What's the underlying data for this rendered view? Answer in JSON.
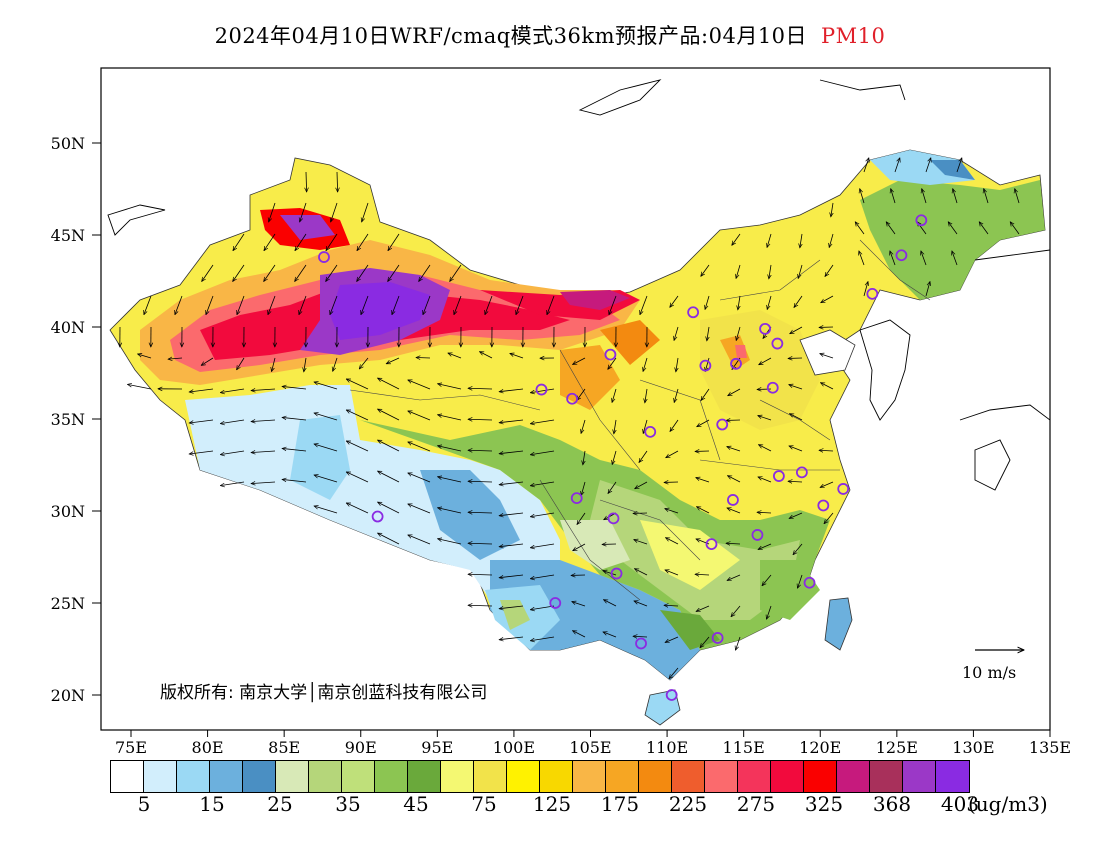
{
  "title": {
    "main": "2024年04月10日WRF/cmaq模式36km预报产品:04月10日",
    "product": "PM10"
  },
  "map": {
    "lat_labels": [
      "50N",
      "45N",
      "40N",
      "35N",
      "30N",
      "25N",
      "20N"
    ],
    "lon_labels": [
      "75E",
      "80E",
      "85E",
      "90E",
      "95E",
      "100E",
      "105E",
      "110E",
      "115E",
      "120E",
      "125E",
      "130E",
      "135E"
    ],
    "copyright": "版权所有: 南京大学│南京创蓝科技有限公司",
    "wind_scale_label": "10 m/s"
  },
  "legend": {
    "colors": [
      "#ffffff",
      "#d2eefc",
      "#9bd9f4",
      "#6cb0dd",
      "#4a8fc3",
      "#d8e9b7",
      "#b5d67a",
      "#bfe07a",
      "#8cc552",
      "#6aa93b",
      "#f4f872",
      "#f2e34a",
      "#fff200",
      "#f8d800",
      "#f9b646",
      "#f6a623",
      "#f38a10",
      "#ef5d2d",
      "#fb6a6d",
      "#f4345b",
      "#f20a3d",
      "#fa0000",
      "#c61a7d",
      "#a8305b",
      "#9b38c7",
      "#8a2be2"
    ],
    "labels": [
      "5",
      "15",
      "25",
      "35",
      "45",
      "75",
      "125",
      "175",
      "225",
      "275",
      "325",
      "368",
      "403"
    ],
    "unit": "(ug/m3)"
  },
  "stations": [
    {
      "lon": 87.6,
      "lat": 43.8
    },
    {
      "lon": 91.1,
      "lat": 29.7
    },
    {
      "lon": 101.8,
      "lat": 36.6
    },
    {
      "lon": 103.8,
      "lat": 36.1
    },
    {
      "lon": 106.3,
      "lat": 38.5
    },
    {
      "lon": 111.7,
      "lat": 40.8
    },
    {
      "lon": 112.5,
      "lat": 37.9
    },
    {
      "lon": 114.5,
      "lat": 38.0
    },
    {
      "lon": 116.4,
      "lat": 39.9
    },
    {
      "lon": 117.2,
      "lat": 39.1
    },
    {
      "lon": 116.9,
      "lat": 36.7
    },
    {
      "lon": 113.6,
      "lat": 34.7
    },
    {
      "lon": 108.9,
      "lat": 34.3
    },
    {
      "lon": 104.1,
      "lat": 30.7
    },
    {
      "lon": 106.5,
      "lat": 29.6
    },
    {
      "lon": 106.7,
      "lat": 26.6
    },
    {
      "lon": 102.7,
      "lat": 25.0
    },
    {
      "lon": 108.3,
      "lat": 22.8
    },
    {
      "lon": 113.3,
      "lat": 23.1
    },
    {
      "lon": 110.3,
      "lat": 20.0
    },
    {
      "lon": 119.3,
      "lat": 26.1
    },
    {
      "lon": 115.9,
      "lat": 28.7
    },
    {
      "lon": 112.9,
      "lat": 28.2
    },
    {
      "lon": 114.3,
      "lat": 30.6
    },
    {
      "lon": 117.3,
      "lat": 31.9
    },
    {
      "lon": 118.8,
      "lat": 32.1
    },
    {
      "lon": 120.2,
      "lat": 30.3
    },
    {
      "lon": 121.5,
      "lat": 31.2
    },
    {
      "lon": 123.4,
      "lat": 41.8
    },
    {
      "lon": 125.3,
      "lat": 43.9
    },
    {
      "lon": 126.6,
      "lat": 45.8
    }
  ]
}
